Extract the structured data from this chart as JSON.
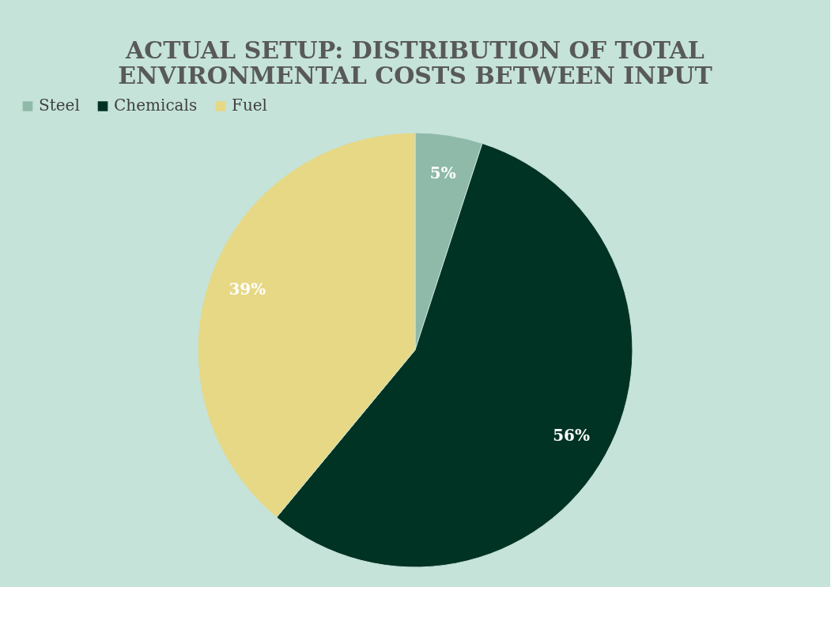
{
  "chart_data": {
    "type": "pie",
    "title": "ACTUAL SETUP: DISTRIBUTION OF TOTAL ENVIRONMENTAL COSTS BETWEEN INPUT",
    "categories": [
      "Steel",
      "Chemicals",
      "Fuel"
    ],
    "values": [
      5,
      56,
      39
    ],
    "colors": [
      "#8fb9a8",
      "#003324",
      "#e6d885"
    ],
    "value_labels": [
      "5%",
      "56%",
      "39%"
    ],
    "legend": "top"
  }
}
